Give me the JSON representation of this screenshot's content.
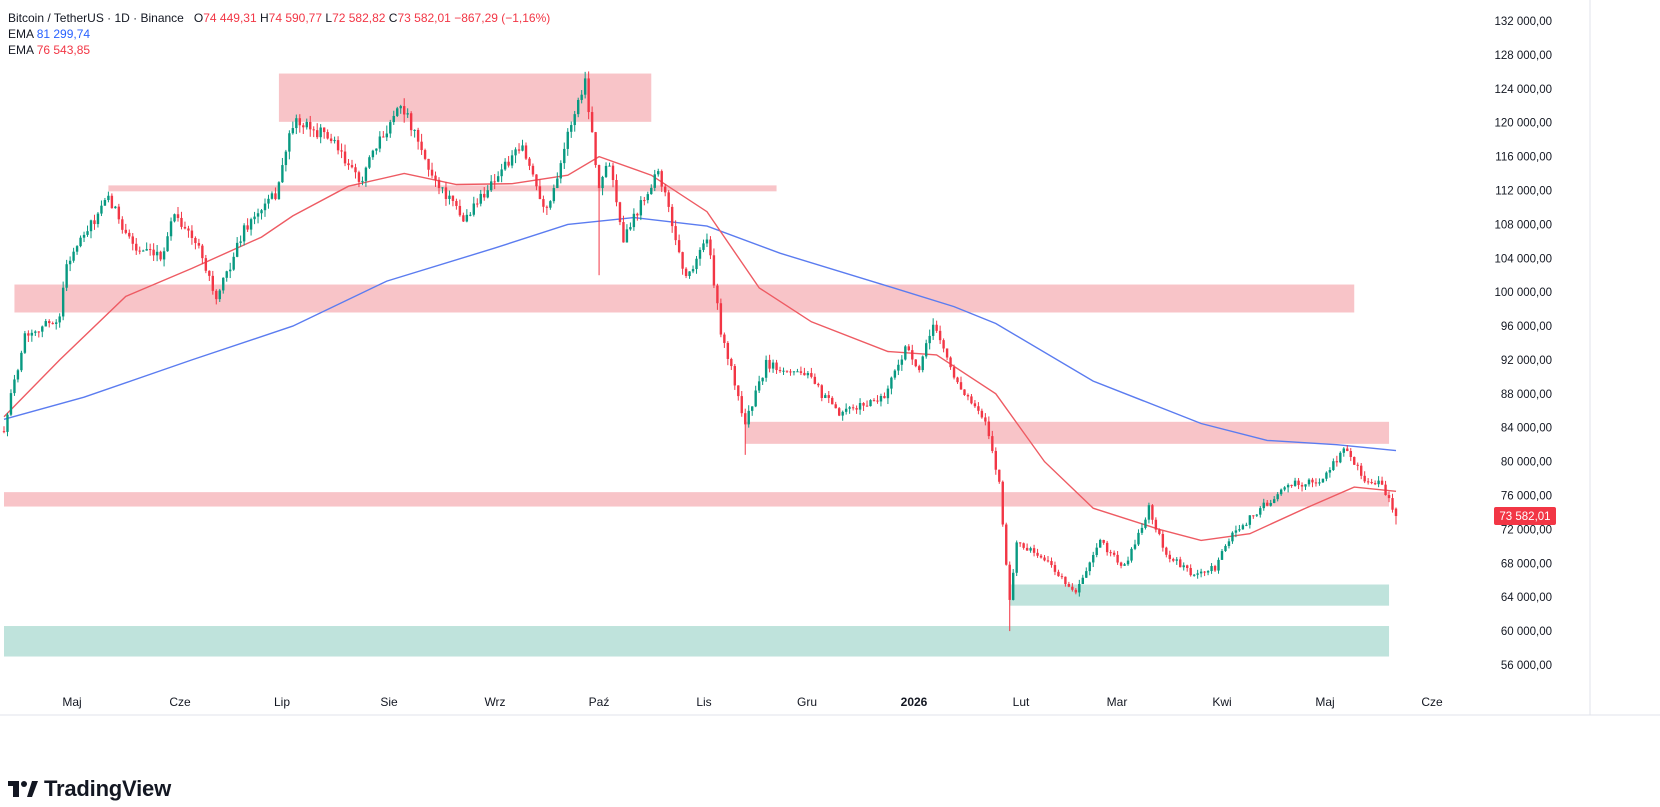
{
  "legend": {
    "symbol": "Bitcoin / TetherUS · 1D · Binance",
    "o_label": "O",
    "o_value": "74 449,31",
    "h_label": "H",
    "h_value": "74 590,77",
    "l_label": "L",
    "l_value": "72 582,82",
    "c_label": "C",
    "c_value": "73 582,01",
    "change": "−867,29 (−1,16%)",
    "ema1_label": "EMA",
    "ema1_value": "81 299,74",
    "ema2_label": "EMA",
    "ema2_value": "76 543,85"
  },
  "price_tag": "73 582,01",
  "brand": "TradingView",
  "colors": {
    "up": "#089981",
    "down": "#f23645",
    "ema_slow": "#5b7cf0",
    "ema_fast": "#ee5b63",
    "resistance_zone": "#f8c4c8",
    "support_zone": "#bfe3dc",
    "axis_text": "#131722",
    "grid": "#eef0f3"
  },
  "chart_data": {
    "type": "candlestick",
    "x_axis": {
      "tick_labels": [
        "Maj",
        "Cze",
        "Lip",
        "Sie",
        "Wrz",
        "Paź",
        "Lis",
        "Gru",
        "2026",
        "Lut",
        "Mar",
        "Kwi",
        "Maj",
        "Cze"
      ]
    },
    "y_axis": {
      "ylim": [
        53000,
        134000
      ],
      "tick_values": [
        56000,
        60000,
        64000,
        68000,
        72000,
        76000,
        80000,
        84000,
        88000,
        92000,
        96000,
        100000,
        104000,
        108000,
        112000,
        116000,
        120000,
        124000,
        128000,
        132000
      ],
      "tick_labels": [
        "56 000,00",
        "60 000,00",
        "64 000,00",
        "68 000,00",
        "72 000,00",
        "76 000,00",
        "80 000,00",
        "84 000,00",
        "88 000,00",
        "92 000,00",
        "96 000,00",
        "100 000,00",
        "104 000,00",
        "108 000,00",
        "112 000,00",
        "116 000,00",
        "120 000,00",
        "124 000,00",
        "128 000,00",
        "132 000,00"
      ]
    },
    "price_path": [
      [
        "2025-04-22",
        84000
      ],
      [
        "2025-04-28",
        95000
      ],
      [
        "2025-05-08",
        97000
      ],
      [
        "2025-05-10",
        103500
      ],
      [
        "2025-05-22",
        111000
      ],
      [
        "2025-05-30",
        105000
      ],
      [
        "2025-06-06",
        104000
      ],
      [
        "2025-06-10",
        109500
      ],
      [
        "2025-06-18",
        104500
      ],
      [
        "2025-06-22",
        99000
      ],
      [
        "2025-06-30",
        107500
      ],
      [
        "2025-07-09",
        111500
      ],
      [
        "2025-07-14",
        120000
      ],
      [
        "2025-07-24",
        118500
      ],
      [
        "2025-08-02",
        113000
      ],
      [
        "2025-08-14",
        122500
      ],
      [
        "2025-08-22",
        114500
      ],
      [
        "2025-09-01",
        108500
      ],
      [
        "2025-09-12",
        114500
      ],
      [
        "2025-09-18",
        117000
      ],
      [
        "2025-09-25",
        109500
      ],
      [
        "2025-10-02",
        120000
      ],
      [
        "2025-10-06",
        125000
      ],
      [
        "2025-10-10",
        112500
      ],
      [
        "2025-10-13",
        115500
      ],
      [
        "2025-10-17",
        106500
      ],
      [
        "2025-10-27",
        114500
      ],
      [
        "2025-11-04",
        101500
      ],
      [
        "2025-11-10",
        106500
      ],
      [
        "2025-11-14",
        95500
      ],
      [
        "2025-11-21",
        84500
      ],
      [
        "2025-11-27",
        91500
      ],
      [
        "2025-12-08",
        90500
      ],
      [
        "2025-12-18",
        85500
      ],
      [
        "2025-12-31",
        87800
      ],
      [
        "2026-01-06",
        93500
      ],
      [
        "2026-01-10",
        90500
      ],
      [
        "2026-01-14",
        96500
      ],
      [
        "2026-01-20",
        90000
      ],
      [
        "2026-01-29",
        84500
      ],
      [
        "2026-02-02",
        77500
      ],
      [
        "2026-02-05",
        63500
      ],
      [
        "2026-02-07",
        70500
      ],
      [
        "2026-02-15",
        68500
      ],
      [
        "2026-02-24",
        64500
      ],
      [
        "2026-03-03",
        70500
      ],
      [
        "2026-03-10",
        67500
      ],
      [
        "2026-03-17",
        74500
      ],
      [
        "2026-03-22",
        69000
      ],
      [
        "2026-03-30",
        66500
      ],
      [
        "2026-04-05",
        67500
      ],
      [
        "2026-04-10",
        71500
      ],
      [
        "2026-04-21",
        75500
      ],
      [
        "2026-04-28",
        77500
      ],
      [
        "2026-05-05",
        77500
      ],
      [
        "2026-05-12",
        81500
      ],
      [
        "2026-05-19",
        77500
      ],
      [
        "2026-05-22",
        77800
      ],
      [
        "2026-05-27",
        73582
      ]
    ],
    "wicks": [
      {
        "date": "2025-10-10",
        "low": 102000
      },
      {
        "date": "2025-11-21",
        "low": 80800
      },
      {
        "date": "2026-02-05",
        "low": 60000
      },
      {
        "date": "2026-10-06",
        "high": 126000
      }
    ],
    "series": [
      {
        "name": "EMA",
        "value": "81 299,74",
        "color": "#5b7cf0",
        "points": [
          [
            "2025-04-22",
            85000
          ],
          [
            "2025-05-15",
            87600
          ],
          [
            "2025-06-15",
            92000
          ],
          [
            "2025-07-14",
            96000
          ],
          [
            "2025-08-10",
            101300
          ],
          [
            "2025-09-10",
            105200
          ],
          [
            "2025-10-01",
            108000
          ],
          [
            "2025-10-20",
            108800
          ],
          [
            "2025-11-10",
            107800
          ],
          [
            "2025-12-01",
            104600
          ],
          [
            "2026-01-01",
            100700
          ],
          [
            "2026-01-20",
            98300
          ],
          [
            "2026-02-01",
            96300
          ],
          [
            "2026-03-01",
            89500
          ],
          [
            "2026-04-01",
            84500
          ],
          [
            "2026-04-20",
            82500
          ],
          [
            "2026-05-10",
            82000
          ],
          [
            "2026-05-27",
            81300
          ]
        ]
      },
      {
        "name": "EMA",
        "value": "76 543,85",
        "color": "#ee5b63",
        "points": [
          [
            "2025-04-22",
            85300
          ],
          [
            "2025-05-08",
            92000
          ],
          [
            "2025-05-27",
            99500
          ],
          [
            "2025-06-15",
            102800
          ],
          [
            "2025-07-05",
            106500
          ],
          [
            "2025-07-14",
            109000
          ],
          [
            "2025-07-30",
            112500
          ],
          [
            "2025-08-15",
            114000
          ],
          [
            "2025-08-30",
            112700
          ],
          [
            "2025-09-15",
            112800
          ],
          [
            "2025-10-01",
            113800
          ],
          [
            "2025-10-10",
            116000
          ],
          [
            "2025-10-25",
            113800
          ],
          [
            "2025-11-10",
            109500
          ],
          [
            "2025-11-25",
            100500
          ],
          [
            "2025-12-10",
            96500
          ],
          [
            "2026-01-01",
            93000
          ],
          [
            "2026-01-15",
            92600
          ],
          [
            "2026-02-01",
            88000
          ],
          [
            "2026-02-15",
            80000
          ],
          [
            "2026-03-01",
            74500
          ],
          [
            "2026-03-20",
            72000
          ],
          [
            "2026-04-01",
            70700
          ],
          [
            "2026-04-15",
            71500
          ],
          [
            "2026-05-01",
            74500
          ],
          [
            "2026-05-15",
            77000
          ],
          [
            "2026-05-27",
            76500
          ]
        ]
      }
    ],
    "zones": [
      {
        "kind": "resistance",
        "from": "2025-07-10",
        "to": "2025-10-25",
        "low": 120100,
        "high": 125800
      },
      {
        "kind": "resistance",
        "from": "2025-05-22",
        "to": "2025-11-30",
        "low": 111900,
        "high": 112600
      },
      {
        "kind": "resistance",
        "from": "2025-04-25",
        "to": "2026-05-15",
        "low": 97600,
        "high": 100900
      },
      {
        "kind": "resistance",
        "from": "2025-11-21",
        "to": "2026-05-25",
        "low": 82100,
        "high": 84700
      },
      {
        "kind": "resistance",
        "from": "2025-04-22",
        "to": "2026-05-25",
        "low": 74700,
        "high": 76400
      },
      {
        "kind": "support",
        "from": "2026-02-05",
        "to": "2026-05-25",
        "low": 63000,
        "high": 65500
      },
      {
        "kind": "support",
        "from": "2025-04-22",
        "to": "2026-05-25",
        "low": 57000,
        "high": 60600
      }
    ],
    "last_price": 73582.01
  }
}
